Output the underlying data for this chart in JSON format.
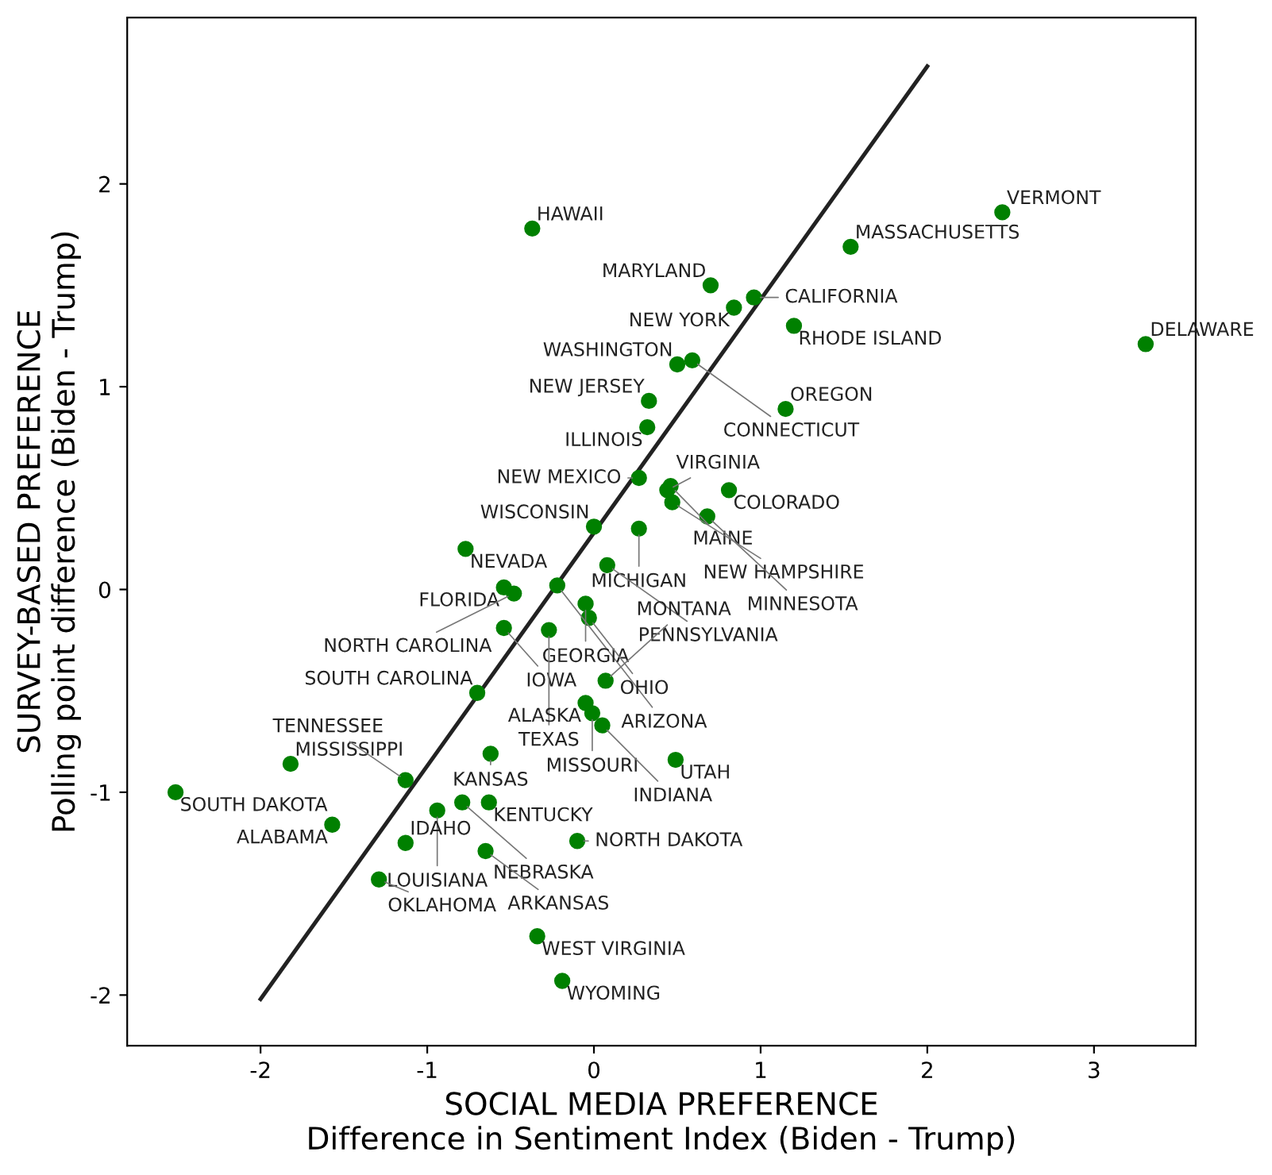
{
  "chart_data": {
    "type": "scatter",
    "xlabel": "SOCIAL MEDIA PREFERENCE\nDifference in Sentiment Index (Biden - Trump)",
    "ylabel": "SURVEY-BASED PREFERENCE\nPolling point difference (Biden - Trump)",
    "xlim": [
      -2.8,
      3.61
    ],
    "ylim": [
      -2.25,
      2.82
    ],
    "xticks": [
      -2,
      -1,
      0,
      1,
      2,
      3
    ],
    "yticks": [
      -2,
      -1,
      0,
      1,
      2
    ],
    "grid": false,
    "series": [
      {
        "marker": "circle",
        "color": "#008000",
        "x": [
          -0.37,
          0.7,
          0.96,
          0.84,
          1.2,
          1.54,
          2.45,
          3.31,
          0.5,
          0.59,
          0.33,
          0.32,
          1.15,
          0.27,
          0.44,
          0.46,
          0.47,
          0.81,
          0.68,
          0.0,
          0.27,
          -0.77,
          0.08,
          -0.54,
          -0.48,
          -0.22,
          -0.05,
          -0.03,
          -0.54,
          -0.27,
          -0.7,
          0.07,
          -0.05,
          -0.01,
          0.05,
          -0.62,
          0.49,
          -1.82,
          -2.51,
          -1.13,
          -0.79,
          -0.63,
          -0.94,
          -1.57,
          -1.13,
          -0.65,
          -0.1,
          -1.29,
          -0.34,
          -0.19
        ],
        "values": [
          1.78,
          1.5,
          1.44,
          1.39,
          1.3,
          1.69,
          1.86,
          1.21,
          1.11,
          1.13,
          0.93,
          0.8,
          0.89,
          0.55,
          0.49,
          0.51,
          0.43,
          0.49,
          0.36,
          0.31,
          0.3,
          0.2,
          0.12,
          0.01,
          -0.02,
          0.02,
          -0.07,
          -0.14,
          -0.19,
          -0.2,
          -0.51,
          -0.45,
          -0.56,
          -0.61,
          -0.67,
          -0.81,
          -0.84,
          -0.86,
          -1.0,
          -0.94,
          -1.05,
          -1.05,
          -1.09,
          -1.16,
          -1.25,
          -1.29,
          -1.24,
          -1.43,
          -1.71,
          -1.93
        ]
      },
      {
        "type": "line",
        "color": "#222222",
        "line_style": "solid",
        "x": [
          -2,
          2
        ],
        "values": [
          -2.02,
          2.58
        ]
      }
    ],
    "annotations": [
      {
        "text": "HAWAII",
        "x": -0.37,
        "y": 1.78
      },
      {
        "text": "MARYLAND",
        "x": 0.7,
        "y": 1.5
      },
      {
        "text": "CALIFORNIA",
        "x": 0.96,
        "y": 1.44
      },
      {
        "text": "NEW YORK",
        "x": 0.84,
        "y": 1.39
      },
      {
        "text": "RHODE ISLAND",
        "x": 1.2,
        "y": 1.3
      },
      {
        "text": "MASSACHUSETTS",
        "x": 1.54,
        "y": 1.69
      },
      {
        "text": "VERMONT",
        "x": 2.45,
        "y": 1.86
      },
      {
        "text": "DELAWARE",
        "x": 3.31,
        "y": 1.21
      },
      {
        "text": "WASHINGTON",
        "x": 0.5,
        "y": 1.11
      },
      {
        "text": "CONNECTICUT",
        "x": 0.59,
        "y": 1.13
      },
      {
        "text": "NEW JERSEY",
        "x": 0.33,
        "y": 0.93
      },
      {
        "text": "ILLINOIS",
        "x": 0.32,
        "y": 0.8
      },
      {
        "text": "OREGON",
        "x": 1.15,
        "y": 0.89
      },
      {
        "text": "NEW MEXICO",
        "x": 0.27,
        "y": 0.55
      },
      {
        "text": "VIRGINIA",
        "x": 0.44,
        "y": 0.49
      },
      {
        "text": "MAINE",
        "x": 0.46,
        "y": 0.51
      },
      {
        "text": "NEW HAMPSHIRE",
        "x": 0.47,
        "y": 0.43
      },
      {
        "text": "COLORADO",
        "x": 0.81,
        "y": 0.49
      },
      {
        "text": "MINNESOTA",
        "x": 0.68,
        "y": 0.36
      },
      {
        "text": "WISCONSIN",
        "x": 0.0,
        "y": 0.31
      },
      {
        "text": "MICHIGAN",
        "x": 0.27,
        "y": 0.3
      },
      {
        "text": "NEVADA",
        "x": -0.77,
        "y": 0.2
      },
      {
        "text": "PENNSYLVANIA",
        "x": 0.08,
        "y": 0.12
      },
      {
        "text": "FLORIDA",
        "x": -0.54,
        "y": 0.01
      },
      {
        "text": "NORTH CAROLINA",
        "x": -0.48,
        "y": -0.02
      },
      {
        "text": "ARIZONA",
        "x": -0.22,
        "y": 0.02
      },
      {
        "text": "GEORGIA",
        "x": -0.05,
        "y": -0.07
      },
      {
        "text": "OHIO",
        "x": -0.03,
        "y": -0.14
      },
      {
        "text": "IOWA",
        "x": -0.54,
        "y": -0.19
      },
      {
        "text": "TEXAS",
        "x": -0.27,
        "y": -0.2
      },
      {
        "text": "SOUTH CAROLINA",
        "x": -0.7,
        "y": -0.51
      },
      {
        "text": "MONTANA",
        "x": 0.07,
        "y": -0.45
      },
      {
        "text": "ALASKA",
        "x": -0.05,
        "y": -0.56
      },
      {
        "text": "MISSOURI",
        "x": -0.01,
        "y": -0.61
      },
      {
        "text": "INDIANA",
        "x": 0.05,
        "y": -0.67
      },
      {
        "text": "KANSAS",
        "x": -0.62,
        "y": -0.81
      },
      {
        "text": "UTAH",
        "x": 0.49,
        "y": -0.84
      },
      {
        "text": "MISSISSIPPI",
        "x": -1.82,
        "y": -0.86
      },
      {
        "text": "SOUTH DAKOTA",
        "x": -2.51,
        "y": -1.0
      },
      {
        "text": "TENNESSEE",
        "x": -1.13,
        "y": -0.94
      },
      {
        "text": "NEBRASKA",
        "x": -0.79,
        "y": -1.05
      },
      {
        "text": "KENTUCKY",
        "x": -0.63,
        "y": -1.05
      },
      {
        "text": "LOUISIANA",
        "x": -0.94,
        "y": -1.09
      },
      {
        "text": "ALABAMA",
        "x": -1.57,
        "y": -1.16
      },
      {
        "text": "IDAHO",
        "x": -1.13,
        "y": -1.25
      },
      {
        "text": "ARKANSAS",
        "x": -0.65,
        "y": -1.29
      },
      {
        "text": "NORTH DAKOTA",
        "x": -0.1,
        "y": -1.24
      },
      {
        "text": "OKLAHOMA",
        "x": -1.29,
        "y": -1.43
      },
      {
        "text": "WEST VIRGINIA",
        "x": -0.34,
        "y": -1.71
      },
      {
        "text": "WYOMING",
        "x": -0.19,
        "y": -1.93
      }
    ]
  }
}
